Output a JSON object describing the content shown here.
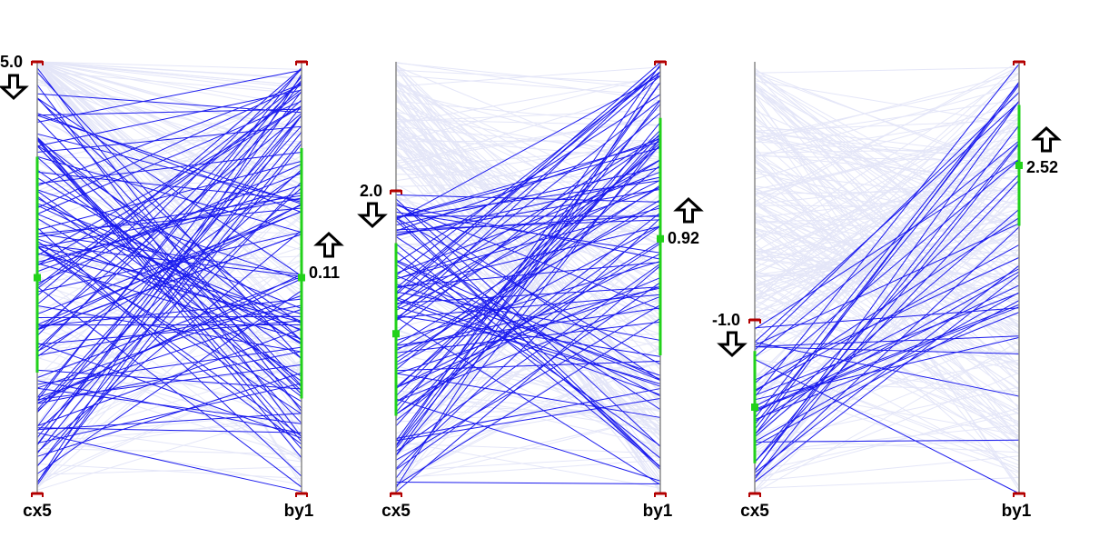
{
  "colors": {
    "background": "#ffffff",
    "context_line": "#e4e6f8",
    "selected_line": "#1a1aee",
    "axis": "#8a8a8a",
    "brush": "#22d11a",
    "handle": "#b30000",
    "arrow_stroke": "#000000"
  },
  "chart_data": [
    {
      "type": "parallel-coordinates",
      "axes": [
        "cx5",
        "by1"
      ],
      "threshold": {
        "axis": "cx5",
        "label": "5.0",
        "arrow": "down"
      },
      "brush_cx5": {
        "center": 0.5,
        "range": [
          0.28,
          0.78
        ]
      },
      "brush_by1": {
        "center": 0.5,
        "range": [
          0.22,
          0.8
        ]
      },
      "marker_label": {
        "axis": "by1",
        "label": "0.11",
        "arrow": "up"
      },
      "line_counts": {
        "selected": 120,
        "context": 150
      }
    },
    {
      "type": "parallel-coordinates",
      "axes": [
        "cx5",
        "by1"
      ],
      "threshold": {
        "axis": "cx5",
        "label": "2.0",
        "arrow": "down"
      },
      "brush_cx5": {
        "center": 0.37,
        "range": [
          0.18,
          0.58
        ]
      },
      "brush_by1": {
        "center": 0.59,
        "range": [
          0.32,
          0.87
        ]
      },
      "marker_label": {
        "axis": "by1",
        "label": "0.92",
        "arrow": "up"
      },
      "line_counts": {
        "selected": 100,
        "context": 170
      }
    },
    {
      "type": "parallel-coordinates",
      "axes": [
        "cx5",
        "by1"
      ],
      "threshold": {
        "axis": "cx5",
        "label": "-1.0",
        "arrow": "down"
      },
      "brush_cx5": {
        "center": 0.2,
        "range": [
          0.07,
          0.33
        ]
      },
      "brush_by1": {
        "center": 0.76,
        "range": [
          0.62,
          0.9
        ]
      },
      "marker_label": {
        "axis": "by1",
        "label": "2.52",
        "arrow": "up"
      },
      "line_counts": {
        "selected": 40,
        "context": 220
      }
    }
  ]
}
